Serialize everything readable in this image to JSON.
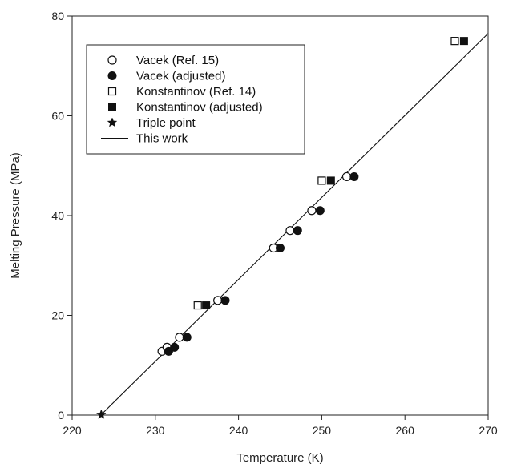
{
  "chart_data": {
    "type": "scatter",
    "xlabel": "Temperature (K)",
    "ylabel": "Melting Pressure (MPa)",
    "xlim": [
      220,
      270
    ],
    "ylim": [
      0,
      80
    ],
    "xticks": [
      220,
      230,
      240,
      250,
      260,
      270
    ],
    "yticks": [
      0,
      20,
      40,
      60,
      80
    ],
    "grid": false,
    "legend_position": "top-left",
    "series": [
      {
        "name": "Vacek (Ref. 15)",
        "marker": "open-circle",
        "points": [
          [
            230.8,
            12.8
          ],
          [
            231.4,
            13.6
          ],
          [
            232.9,
            15.6
          ],
          [
            237.5,
            23.0
          ],
          [
            244.2,
            33.5
          ],
          [
            246.2,
            37.0
          ],
          [
            248.8,
            41.0
          ],
          [
            253.0,
            47.8
          ]
        ]
      },
      {
        "name": "Vacek (adjusted)",
        "marker": "filled-circle",
        "points": [
          [
            231.6,
            12.8
          ],
          [
            232.3,
            13.6
          ],
          [
            233.8,
            15.6
          ],
          [
            238.4,
            23.0
          ],
          [
            245.0,
            33.5
          ],
          [
            247.1,
            37.0
          ],
          [
            249.8,
            41.0
          ],
          [
            253.9,
            47.8
          ]
        ]
      },
      {
        "name": "Konstantinov (Ref. 14)",
        "marker": "open-square",
        "points": [
          [
            235.1,
            22.0
          ],
          [
            250.0,
            47.0
          ],
          [
            266.0,
            75.0
          ]
        ]
      },
      {
        "name": "Konstantinov (adjusted)",
        "marker": "filled-square",
        "points": [
          [
            236.1,
            22.0
          ],
          [
            251.1,
            47.0
          ],
          [
            267.1,
            75.0
          ]
        ]
      },
      {
        "name": "Triple point",
        "marker": "star",
        "points": [
          [
            223.5,
            0.1
          ]
        ]
      },
      {
        "name": "This work",
        "marker": "line",
        "points": [
          [
            223.5,
            0.1
          ],
          [
            270.0,
            76.5
          ]
        ]
      }
    ]
  }
}
